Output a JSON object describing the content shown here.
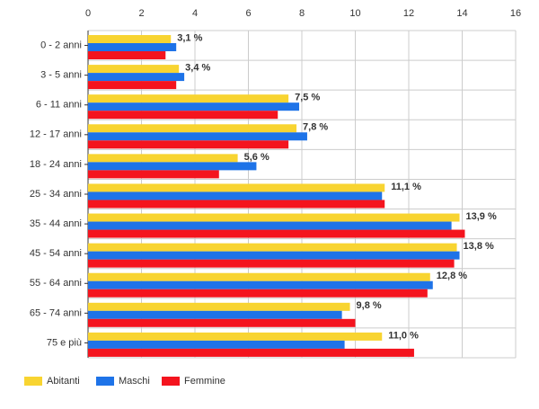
{
  "chart_data": {
    "type": "bar",
    "orientation": "horizontal",
    "categories": [
      "0 - 2 anni",
      "3 - 5 anni",
      "6 - 11 anni",
      "12 - 17 anni",
      "18 - 24 anni",
      "25 - 34 anni",
      "35 - 44 anni",
      "45 - 54 anni",
      "55 - 64 anni",
      "65 - 74 anni",
      "75 e più"
    ],
    "series": [
      {
        "name": "Abitanti",
        "color": "#f8d431",
        "values": [
          3.1,
          3.4,
          7.5,
          7.8,
          5.6,
          11.1,
          13.9,
          13.8,
          12.8,
          9.8,
          11.0
        ],
        "labels": [
          "3,1 %",
          "3,4 %",
          "7,5 %",
          "7,8 %",
          "5,6 %",
          "11,1 %",
          "13,9 %",
          "13,8 %",
          "12,8 %",
          "9,8 %",
          "11,0 %"
        ]
      },
      {
        "name": "Maschi",
        "color": "#1e73e8",
        "values": [
          3.3,
          3.6,
          7.9,
          8.2,
          6.3,
          11.0,
          13.6,
          13.9,
          12.9,
          9.5,
          9.6
        ]
      },
      {
        "name": "Femmine",
        "color": "#f4141e",
        "values": [
          2.9,
          3.3,
          7.1,
          7.5,
          4.9,
          11.1,
          14.1,
          13.7,
          12.7,
          10.0,
          12.2
        ]
      }
    ],
    "x_ticks": [
      "0",
      "2",
      "4",
      "6",
      "8",
      "10",
      "12",
      "14",
      "16"
    ],
    "xlim": [
      0,
      16
    ],
    "grid": true,
    "legend_position": "bottom-left"
  }
}
